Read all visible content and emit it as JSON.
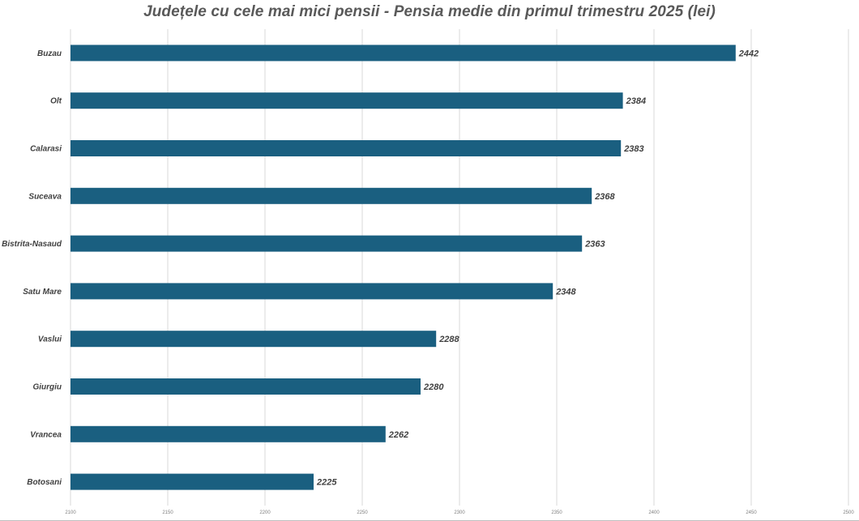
{
  "chart_data": {
    "type": "bar",
    "orientation": "horizontal",
    "title": "Județele cu cele mai mici pensii - Pensia medie din primul trimestru 2025 (lei)",
    "categories": [
      "Buzau",
      "Olt",
      "Calarasi",
      "Suceava",
      "Bistrita-Nasaud",
      "Satu Mare",
      "Vaslui",
      "Giurgiu",
      "Vrancea",
      "Botosani"
    ],
    "values": [
      2442,
      2384,
      2383,
      2368,
      2363,
      2348,
      2288,
      2280,
      2262,
      2225
    ],
    "xlim": [
      2100,
      2500
    ],
    "xticks": [
      "2100",
      "2150",
      "2200",
      "2250",
      "2300",
      "2350",
      "2400",
      "2450",
      "2500"
    ],
    "grid": true,
    "bar_color": "#1a5f80"
  }
}
